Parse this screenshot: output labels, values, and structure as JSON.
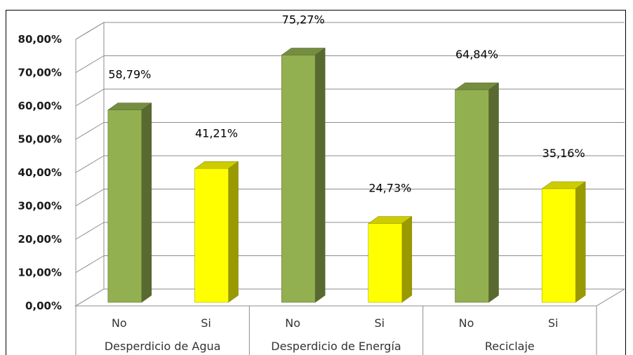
{
  "chart_data": {
    "type": "bar",
    "three_d": true,
    "ylim": [
      0,
      80
    ],
    "y_ticks": [
      "0,00%",
      "10,00%",
      "20,00%",
      "30,00%",
      "40,00%",
      "50,00%",
      "60,00%",
      "70,00%",
      "80,00%"
    ],
    "grid": true,
    "groups": [
      {
        "label": "Desperdicio de Agua",
        "bars": [
          {
            "category": "No",
            "value": 58.79,
            "label": "58,79%",
            "color": "#92b050"
          },
          {
            "category": "Si",
            "value": 41.21,
            "label": "41,21%",
            "color": "#ffff00"
          }
        ]
      },
      {
        "label": "Desperdicio de Energía",
        "bars": [
          {
            "category": "No",
            "value": 75.27,
            "label": "75,27%",
            "color": "#92b050"
          },
          {
            "category": "Si",
            "value": 24.73,
            "label": "24,73%",
            "color": "#ffff00"
          }
        ]
      },
      {
        "label": "Reciclaje",
        "bars": [
          {
            "category": "No",
            "value": 64.84,
            "label": "64,84%",
            "color": "#92b050"
          },
          {
            "category": "Si",
            "value": 35.16,
            "label": "35,16%",
            "color": "#ffff00"
          }
        ]
      }
    ]
  }
}
